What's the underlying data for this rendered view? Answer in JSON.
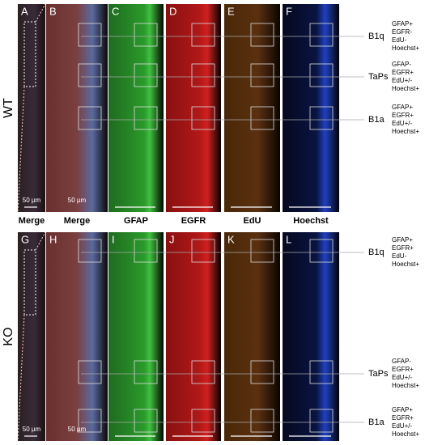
{
  "column_labels": [
    "Merge",
    "Merge",
    "GFAP",
    "EGFR",
    "EdU",
    "Hoechst"
  ],
  "rows": [
    {
      "label": "WT",
      "panels": [
        "A",
        "B",
        "C",
        "D",
        "E",
        "F"
      ],
      "scale_bars": [
        "50 µm",
        "50 µm"
      ],
      "cell_types": [
        {
          "name": "B1q",
          "markers": [
            "GFAP+",
            "EGFR-",
            "EdU-",
            "Hoechst+"
          ]
        },
        {
          "name": "TaPs",
          "markers": [
            "GFAP-",
            "EGFR+",
            "EdU+/-",
            "Hoechst+"
          ]
        },
        {
          "name": "B1a",
          "markers": [
            "GFAP+",
            "EGFR+",
            "EdU+/-",
            "Hoechst+"
          ]
        }
      ]
    },
    {
      "label": "KO",
      "panels": [
        "G",
        "H",
        "I",
        "J",
        "K",
        "L"
      ],
      "scale_bars": [
        "50 µm",
        "50 µm"
      ],
      "cell_types": [
        {
          "name": "B1q",
          "markers": [
            "GFAP+",
            "EGFR+",
            "EdU-",
            "Hoechst+"
          ]
        },
        {
          "name": "TaPs",
          "markers": [
            "GFAP-",
            "EGFR+",
            "EdU+/-",
            "Hoechst+"
          ]
        },
        {
          "name": "B1a",
          "markers": [
            "GFAP+",
            "EGFR+",
            "EdU+/-",
            "Hoechst+"
          ]
        }
      ]
    }
  ]
}
